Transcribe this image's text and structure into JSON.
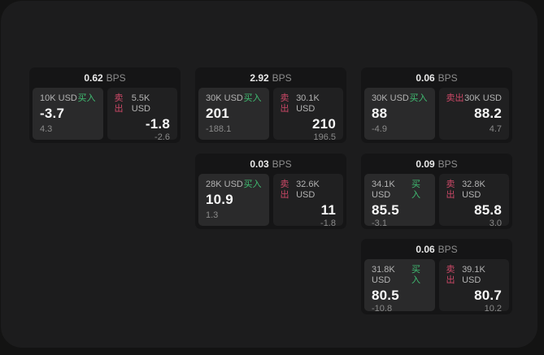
{
  "labels": {
    "unit": "BPS",
    "buy": "买入",
    "sell": "卖出"
  },
  "colors": {
    "page_background": "#131313",
    "panel_background": "#1c1c1d",
    "card_background": "#151516",
    "buy_panel_background": "#2a2a2b",
    "sell_panel_background": "#202021",
    "buy_accent": "#40bd72",
    "sell_accent": "#cc4867",
    "price_text": "#f7f7f7",
    "muted_text": "#8a8a8a"
  },
  "cards": [
    {
      "spread": "0.62",
      "buy": {
        "amount": "10K USD",
        "price": "-3.7",
        "delta": "4.3"
      },
      "sell": {
        "amount": "5.5K USD",
        "price": "-1.8",
        "delta": "-2.6"
      }
    },
    {
      "spread": "2.92",
      "buy": {
        "amount": "30K USD",
        "price": "201",
        "delta": "-188.1"
      },
      "sell": {
        "amount": "30.1K USD",
        "price": "210",
        "delta": "196.5"
      }
    },
    {
      "spread": "0.06",
      "buy": {
        "amount": "30K USD",
        "price": "88",
        "delta": "-4.9"
      },
      "sell": {
        "amount": "30K USD",
        "price": "88.2",
        "delta": "4.7"
      }
    },
    {
      "spread": "0.03",
      "buy": {
        "amount": "28K USD",
        "price": "10.9",
        "delta": "1.3"
      },
      "sell": {
        "amount": "32.6K USD",
        "price": "11",
        "delta": "-1.8"
      }
    },
    {
      "spread": "0.09",
      "buy": {
        "amount": "34.1K USD",
        "price": "85.5",
        "delta": "-3.1"
      },
      "sell": {
        "amount": "32.8K USD",
        "price": "85.8",
        "delta": "3.0"
      }
    },
    {
      "spread": "0.06",
      "buy": {
        "amount": "31.8K USD",
        "price": "80.5",
        "delta": "-10.8"
      },
      "sell": {
        "amount": "39.1K USD",
        "price": "80.7",
        "delta": "10.2"
      }
    }
  ]
}
